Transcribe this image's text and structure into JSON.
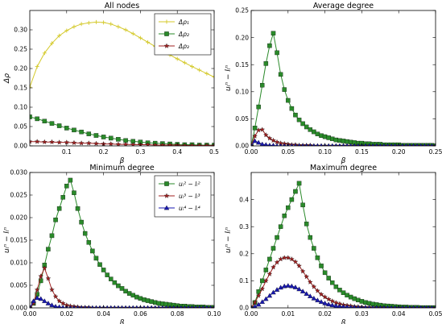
{
  "chart_data": [
    {
      "type": "line",
      "title": "All nodes",
      "xlabel": "β",
      "ylabel": "Δρ",
      "xlim": [
        0.0,
        0.5
      ],
      "ylim": [
        0.0,
        0.35
      ],
      "xticks": [
        0.1,
        0.2,
        0.3,
        0.4,
        0.5
      ],
      "xtick_labels": [
        "0.1",
        "0.2",
        "0.3",
        "0.4",
        "0.5"
      ],
      "yticks": [
        0.0,
        0.05,
        0.1,
        0.15,
        0.2,
        0.25,
        0.3
      ],
      "ytick_labels": [
        "0.00",
        "0.05",
        "0.10",
        "0.15",
        "0.20",
        "0.25",
        "0.30"
      ],
      "legend_position": "top-right",
      "x": [
        0.0,
        0.02,
        0.04,
        0.06,
        0.08,
        0.1,
        0.12,
        0.14,
        0.16,
        0.18,
        0.2,
        0.22,
        0.24,
        0.26,
        0.28,
        0.3,
        0.32,
        0.34,
        0.36,
        0.38,
        0.4,
        0.42,
        0.44,
        0.46,
        0.48,
        0.5
      ],
      "series": [
        {
          "name": "Δρ₁",
          "color": "#d4c92a",
          "marker": "plus",
          "values": [
            0.152,
            0.205,
            0.24,
            0.265,
            0.285,
            0.298,
            0.308,
            0.315,
            0.318,
            0.32,
            0.319,
            0.315,
            0.308,
            0.3,
            0.29,
            0.279,
            0.268,
            0.257,
            0.246,
            0.235,
            0.225,
            0.215,
            0.205,
            0.196,
            0.187,
            0.178
          ]
        },
        {
          "name": "Δρ₂",
          "color": "#2a8a2a",
          "marker": "square",
          "values": [
            0.075,
            0.07,
            0.064,
            0.058,
            0.052,
            0.046,
            0.041,
            0.036,
            0.031,
            0.027,
            0.023,
            0.02,
            0.017,
            0.014,
            0.012,
            0.01,
            0.008,
            0.007,
            0.006,
            0.005,
            0.004,
            0.003,
            0.003,
            0.002,
            0.002,
            0.002
          ]
        },
        {
          "name": "Δρ₃",
          "color": "#a02020",
          "marker": "star",
          "values": [
            0.011,
            0.011,
            0.01,
            0.01,
            0.009,
            0.009,
            0.008,
            0.007,
            0.007,
            0.006,
            0.005,
            0.005,
            0.004,
            0.004,
            0.003,
            0.003,
            0.003,
            0.002,
            0.002,
            0.002,
            0.002,
            0.001,
            0.001,
            0.001,
            0.001,
            0.001
          ]
        }
      ]
    },
    {
      "type": "line",
      "title": "Average degree",
      "xlabel": "β",
      "ylabel": "uᵢⁿ − lᵢⁿ",
      "xlim": [
        0.0,
        0.25
      ],
      "ylim": [
        0.0,
        0.25
      ],
      "xticks": [
        0.0,
        0.05,
        0.1,
        0.15,
        0.2,
        0.25
      ],
      "xtick_labels": [
        "0.00",
        "0.05",
        "0.10",
        "0.15",
        "0.20",
        "0.25"
      ],
      "yticks": [
        0.0,
        0.05,
        0.1,
        0.15,
        0.2,
        0.25
      ],
      "ytick_labels": [
        "0.00",
        "0.05",
        "0.10",
        "0.15",
        "0.20",
        "0.25"
      ],
      "x": [
        0.0,
        0.005,
        0.01,
        0.015,
        0.02,
        0.025,
        0.03,
        0.035,
        0.04,
        0.045,
        0.05,
        0.055,
        0.06,
        0.065,
        0.07,
        0.075,
        0.08,
        0.085,
        0.09,
        0.095,
        0.1,
        0.105,
        0.11,
        0.115,
        0.12,
        0.125,
        0.13,
        0.135,
        0.14,
        0.145,
        0.15,
        0.155,
        0.16,
        0.165,
        0.17,
        0.175,
        0.18,
        0.185,
        0.19,
        0.195,
        0.2,
        0.205,
        0.21,
        0.215,
        0.22,
        0.225,
        0.23,
        0.235,
        0.24,
        0.245,
        0.25
      ],
      "series": [
        {
          "color": "#2a8a2a",
          "marker": "square",
          "values": [
            0.0,
            0.033,
            0.072,
            0.112,
            0.152,
            0.185,
            0.208,
            0.172,
            0.132,
            0.104,
            0.084,
            0.069,
            0.057,
            0.048,
            0.041,
            0.035,
            0.03,
            0.026,
            0.022,
            0.019,
            0.017,
            0.015,
            0.013,
            0.011,
            0.01,
            0.009,
            0.008,
            0.007,
            0.006,
            0.005,
            0.005,
            0.004,
            0.004,
            0.003,
            0.003,
            0.003,
            0.002,
            0.002,
            0.002,
            0.002,
            0.002,
            0.001,
            0.001,
            0.001,
            0.001,
            0.001,
            0.001,
            0.001,
            0.001,
            0.001,
            0.0
          ]
        },
        {
          "color": "#a02020",
          "marker": "star",
          "values": [
            0.0,
            0.018,
            0.029,
            0.03,
            0.02,
            0.014,
            0.01,
            0.007,
            0.005,
            0.004,
            0.003,
            0.002,
            0.002,
            0.001,
            0.001,
            0.001,
            0.001,
            0.0,
            0.0,
            0.0,
            0.0,
            0.0,
            0.0,
            0.0,
            0.0,
            0.0,
            0.0,
            0.0,
            0.0,
            0.0,
            0.0,
            0.0,
            0.0,
            0.0,
            0.0,
            0.0,
            0.0,
            0.0,
            0.0,
            0.0,
            0.0,
            0.0,
            0.0,
            0.0,
            0.0,
            0.0,
            0.0,
            0.0,
            0.0,
            0.0,
            0.0
          ]
        },
        {
          "color": "#1a1ab0",
          "marker": "triangle",
          "values": [
            0.0,
            0.009,
            0.006,
            0.003,
            0.002,
            0.001,
            0.001,
            0.0,
            0.0,
            0.0,
            0.0,
            0.0,
            0.0,
            0.0,
            0.0,
            0.0,
            0.0,
            0.0,
            0.0,
            0.0,
            0.0,
            0.0,
            0.0,
            0.0,
            0.0,
            0.0,
            0.0,
            0.0,
            0.0,
            0.0,
            0.0,
            0.0,
            0.0,
            0.0,
            0.0,
            0.0,
            0.0,
            0.0,
            0.0,
            0.0,
            0.0,
            0.0,
            0.0,
            0.0,
            0.0,
            0.0,
            0.0,
            0.0,
            0.0,
            0.0,
            0.0
          ]
        }
      ]
    },
    {
      "type": "line",
      "title": "Minimum degree",
      "xlabel": "β",
      "ylabel": "uᵢⁿ − lᵢⁿ",
      "xlim": [
        0.0,
        0.1
      ],
      "ylim": [
        0.0,
        0.03
      ],
      "xticks": [
        0.0,
        0.02,
        0.04,
        0.06,
        0.08,
        0.1
      ],
      "xtick_labels": [
        "0.00",
        "0.02",
        "0.04",
        "0.06",
        "0.08",
        "0.10"
      ],
      "yticks": [
        0.0,
        0.005,
        0.01,
        0.015,
        0.02,
        0.025,
        0.03
      ],
      "ytick_labels": [
        "0.000",
        "0.005",
        "0.010",
        "0.015",
        "0.020",
        "0.025",
        "0.030"
      ],
      "legend_position": "top-right",
      "x": [
        0.0,
        0.002,
        0.004,
        0.006,
        0.008,
        0.01,
        0.012,
        0.014,
        0.016,
        0.018,
        0.02,
        0.022,
        0.024,
        0.026,
        0.028,
        0.03,
        0.032,
        0.034,
        0.036,
        0.038,
        0.04,
        0.042,
        0.044,
        0.046,
        0.048,
        0.05,
        0.052,
        0.054,
        0.056,
        0.058,
        0.06,
        0.062,
        0.064,
        0.066,
        0.068,
        0.07,
        0.072,
        0.074,
        0.076,
        0.078,
        0.08,
        0.082,
        0.084,
        0.086,
        0.088,
        0.09,
        0.092,
        0.094,
        0.096,
        0.098,
        0.1
      ],
      "series": [
        {
          "name": "uᵢ² − lᵢ²",
          "color": "#2a8a2a",
          "marker": "square",
          "values": [
            0.0,
            0.001,
            0.003,
            0.006,
            0.0095,
            0.013,
            0.016,
            0.0195,
            0.022,
            0.0245,
            0.027,
            0.0283,
            0.0255,
            0.022,
            0.019,
            0.0165,
            0.0145,
            0.0126,
            0.011,
            0.0096,
            0.0084,
            0.0073,
            0.0064,
            0.0056,
            0.0049,
            0.0043,
            0.0037,
            0.0032,
            0.0028,
            0.0024,
            0.0021,
            0.0018,
            0.0016,
            0.0014,
            0.0012,
            0.001,
            0.0009,
            0.0008,
            0.0007,
            0.0006,
            0.0005,
            0.0004,
            0.0004,
            0.0003,
            0.0003,
            0.0002,
            0.0002,
            0.0002,
            0.0001,
            0.0001,
            0.0001
          ]
        },
        {
          "name": "uᵢ³ − lᵢ³",
          "color": "#a02020",
          "marker": "star",
          "values": [
            0.0,
            0.001,
            0.004,
            0.007,
            0.0088,
            0.0065,
            0.004,
            0.0025,
            0.0015,
            0.001,
            0.0006,
            0.0004,
            0.0003,
            0.0002,
            0.0001,
            0.0001,
            0.0001,
            0.0,
            0.0,
            0.0,
            0.0,
            0.0,
            0.0,
            0.0,
            0.0,
            0.0,
            0.0,
            0.0,
            0.0,
            0.0,
            0.0,
            0.0,
            0.0,
            0.0,
            0.0,
            0.0,
            0.0,
            0.0,
            0.0,
            0.0,
            0.0,
            0.0,
            0.0,
            0.0,
            0.0,
            0.0,
            0.0,
            0.0,
            0.0,
            0.0,
            0.0
          ]
        },
        {
          "name": "uᵢ⁴ − lᵢ⁴",
          "color": "#1a1ab0",
          "marker": "triangle",
          "values": [
            0.0,
            0.0015,
            0.0022,
            0.002,
            0.0015,
            0.001,
            0.0006,
            0.0003,
            0.0002,
            0.0001,
            0.0,
            0.0,
            0.0,
            0.0,
            0.0,
            0.0,
            0.0,
            0.0,
            0.0,
            0.0,
            0.0,
            0.0,
            0.0,
            0.0,
            0.0,
            0.0,
            0.0,
            0.0,
            0.0,
            0.0,
            0.0,
            0.0,
            0.0,
            0.0,
            0.0,
            0.0,
            0.0,
            0.0,
            0.0,
            0.0,
            0.0,
            0.0,
            0.0,
            0.0,
            0.0,
            0.0,
            0.0,
            0.0,
            0.0,
            0.0,
            0.0
          ]
        }
      ]
    },
    {
      "type": "line",
      "title": "Maximum degree",
      "xlabel": "β",
      "ylabel": "uᵢⁿ − lᵢⁿ",
      "xlim": [
        0.0,
        0.05
      ],
      "ylim": [
        0.0,
        0.5
      ],
      "xticks": [
        0.0,
        0.01,
        0.02,
        0.03,
        0.04,
        0.05
      ],
      "xtick_labels": [
        "0.00",
        "0.01",
        "0.02",
        "0.03",
        "0.04",
        "0.05"
      ],
      "yticks": [
        0.0,
        0.1,
        0.2,
        0.3,
        0.4
      ],
      "ytick_labels": [
        "0.0",
        "0.1",
        "0.2",
        "0.3",
        "0.4"
      ],
      "x": [
        0.0,
        0.001,
        0.002,
        0.003,
        0.004,
        0.005,
        0.006,
        0.007,
        0.008,
        0.009,
        0.01,
        0.011,
        0.012,
        0.013,
        0.014,
        0.015,
        0.016,
        0.017,
        0.018,
        0.019,
        0.02,
        0.021,
        0.022,
        0.023,
        0.024,
        0.025,
        0.026,
        0.027,
        0.028,
        0.029,
        0.03,
        0.031,
        0.032,
        0.033,
        0.034,
        0.035,
        0.036,
        0.037,
        0.038,
        0.039,
        0.04,
        0.041,
        0.042,
        0.043,
        0.044,
        0.045,
        0.046,
        0.047,
        0.048,
        0.049,
        0.05
      ],
      "series": [
        {
          "color": "#2a8a2a",
          "marker": "square",
          "values": [
            0.0,
            0.02,
            0.06,
            0.1,
            0.14,
            0.18,
            0.22,
            0.26,
            0.3,
            0.34,
            0.37,
            0.4,
            0.43,
            0.46,
            0.38,
            0.31,
            0.26,
            0.22,
            0.185,
            0.155,
            0.13,
            0.11,
            0.093,
            0.078,
            0.066,
            0.056,
            0.047,
            0.04,
            0.034,
            0.029,
            0.024,
            0.02,
            0.017,
            0.014,
            0.012,
            0.01,
            0.008,
            0.007,
            0.006,
            0.005,
            0.004,
            0.003,
            0.003,
            0.002,
            0.002,
            0.002,
            0.001,
            0.001,
            0.001,
            0.001,
            0.001
          ]
        },
        {
          "color": "#a02020",
          "marker": "star",
          "values": [
            0.0,
            0.02,
            0.045,
            0.07,
            0.1,
            0.125,
            0.15,
            0.168,
            0.18,
            0.185,
            0.185,
            0.18,
            0.17,
            0.155,
            0.135,
            0.115,
            0.095,
            0.078,
            0.063,
            0.05,
            0.04,
            0.032,
            0.025,
            0.019,
            0.015,
            0.011,
            0.009,
            0.007,
            0.005,
            0.004,
            0.003,
            0.002,
            0.002,
            0.001,
            0.001,
            0.001,
            0.001,
            0.0,
            0.0,
            0.0,
            0.0,
            0.0,
            0.0,
            0.0,
            0.0,
            0.0,
            0.0,
            0.0,
            0.0,
            0.0,
            0.0
          ]
        },
        {
          "color": "#1a1ab0",
          "marker": "triangle",
          "values": [
            0.0,
            0.005,
            0.012,
            0.022,
            0.033,
            0.045,
            0.057,
            0.067,
            0.075,
            0.08,
            0.082,
            0.08,
            0.076,
            0.069,
            0.061,
            0.052,
            0.043,
            0.035,
            0.028,
            0.022,
            0.017,
            0.013,
            0.01,
            0.007,
            0.005,
            0.004,
            0.003,
            0.002,
            0.002,
            0.001,
            0.001,
            0.001,
            0.0,
            0.0,
            0.0,
            0.0,
            0.0,
            0.0,
            0.0,
            0.0,
            0.0,
            0.0,
            0.0,
            0.0,
            0.0,
            0.0,
            0.0,
            0.0,
            0.0,
            0.0,
            0.0
          ]
        }
      ]
    }
  ]
}
